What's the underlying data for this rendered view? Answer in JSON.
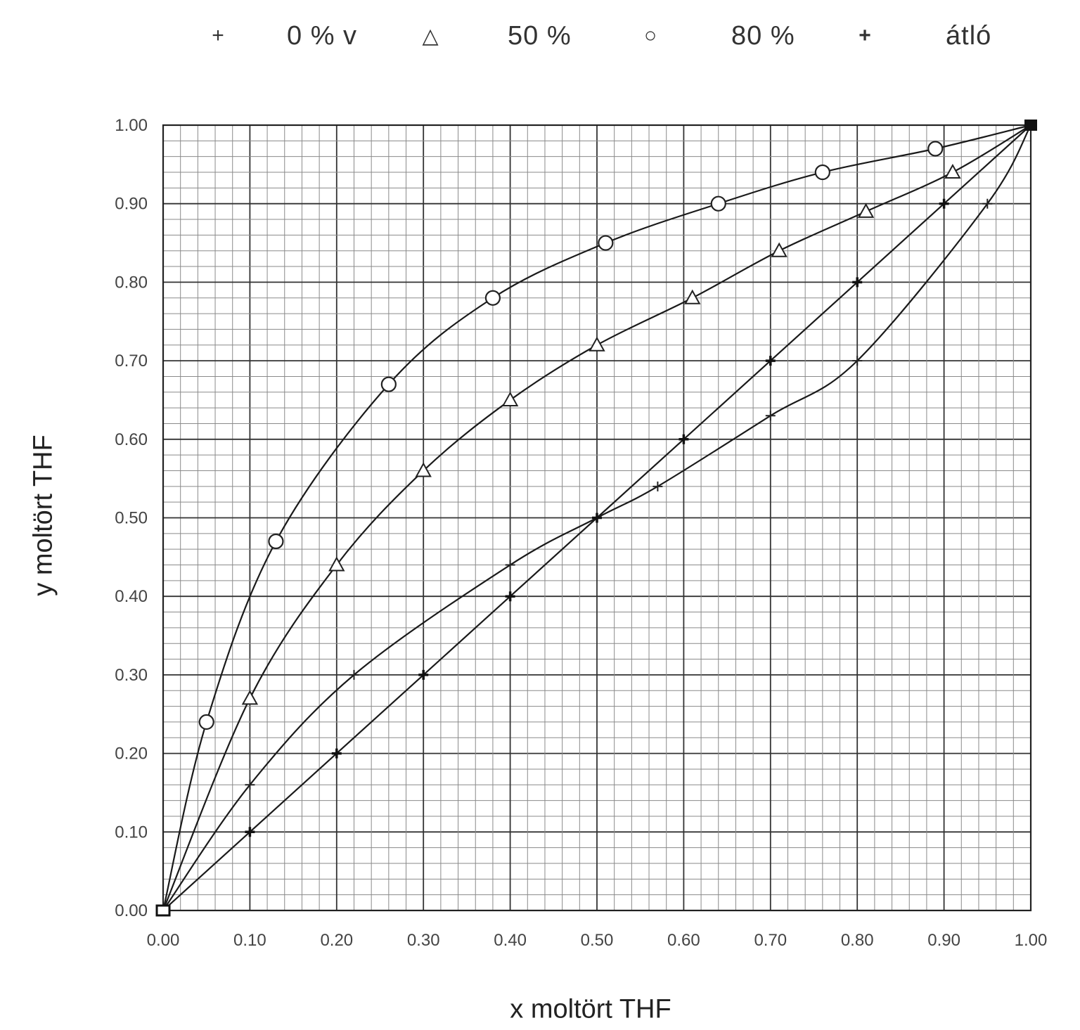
{
  "legend": [
    {
      "symbol": "+",
      "label": "0 % v",
      "marker": "plus"
    },
    {
      "symbol": "△",
      "label": "50 %",
      "marker": "triangle"
    },
    {
      "symbol": "○",
      "label": "80 %",
      "marker": "circle"
    },
    {
      "symbol": "+",
      "label": "átló",
      "marker": "bold-plus"
    }
  ],
  "chart_data": {
    "type": "line",
    "xlabel": "x moltört THF",
    "ylabel": "y moltört THF",
    "xlim": [
      0,
      1
    ],
    "ylim": [
      0,
      1
    ],
    "xticks": [
      "0.00",
      "0.10",
      "0.20",
      "0.30",
      "0.40",
      "0.50",
      "0.60",
      "0.70",
      "0.80",
      "0.90",
      "1.00"
    ],
    "yticks": [
      "0.00",
      "0.10",
      "0.20",
      "0.30",
      "0.40",
      "0.50",
      "0.60",
      "0.70",
      "0.80",
      "0.90",
      "1.00"
    ],
    "grid": true,
    "legend_position": "top",
    "series": [
      {
        "name": "0 % v",
        "marker": "plus",
        "x": [
          0.0,
          0.1,
          0.22,
          0.4,
          0.5,
          0.57,
          0.7,
          0.8,
          0.95,
          1.0
        ],
        "y": [
          0.0,
          0.16,
          0.3,
          0.44,
          0.5,
          0.54,
          0.63,
          0.7,
          0.9,
          1.0
        ]
      },
      {
        "name": "50 %",
        "marker": "triangle",
        "x": [
          0.0,
          0.1,
          0.2,
          0.3,
          0.4,
          0.5,
          0.61,
          0.71,
          0.81,
          0.91,
          1.0
        ],
        "y": [
          0.0,
          0.27,
          0.44,
          0.56,
          0.65,
          0.72,
          0.78,
          0.84,
          0.89,
          0.94,
          1.0
        ]
      },
      {
        "name": "80 %",
        "marker": "circle",
        "x": [
          0.0,
          0.05,
          0.13,
          0.26,
          0.38,
          0.51,
          0.64,
          0.76,
          0.89,
          1.0
        ],
        "y": [
          0.0,
          0.24,
          0.47,
          0.67,
          0.78,
          0.85,
          0.9,
          0.94,
          0.97,
          1.0
        ]
      },
      {
        "name": "átló",
        "marker": "bold-plus",
        "x": [
          0.0,
          0.1,
          0.2,
          0.3,
          0.4,
          0.5,
          0.6,
          0.7,
          0.8,
          0.9,
          1.0
        ],
        "y": [
          0.0,
          0.1,
          0.2,
          0.3,
          0.4,
          0.5,
          0.6,
          0.7,
          0.8,
          0.9,
          1.0
        ]
      }
    ]
  }
}
